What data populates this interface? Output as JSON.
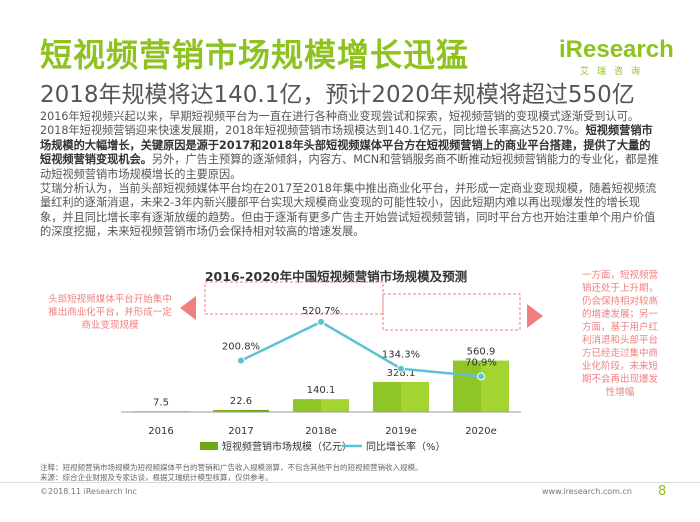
{
  "header": {
    "title": "短视频营销市场规模增长迅猛",
    "subtitle": "2018年规模将达140.1亿，预计2020年规模将超过550亿"
  },
  "logo": {
    "brand": "iResearch",
    "brand_cn": "艾瑞咨询"
  },
  "body": {
    "p1": "2016年短视频兴起以来，早期短视频平台为一直在进行各种商业变现尝试和探索，短视频营销的变现模式逐渐受到认可。2018年短视频营销迎来快速发展期，2018年短视频营销市场规模达到140.1亿元，同比增长率高达520.7%。",
    "p1_bold": "短视频营销市场规模的大幅增长，关键原因是源于2017和2018年头部短视频媒体平台方在短视频营销上的商业平台搭建，提供了大量的短视频营销变现机会。",
    "p1_tail": "另外，广告主预算的逐渐倾斜，内容方、MCN和营销服务商不断推动短视频营销能力的专业化，都是推动短视频营销市场规模增长的主要原因。",
    "p2": "艾瑞分析认为，当前头部短视频媒体平台均在2017至2018年集中推出商业化平台，并形成一定商业变现规模，随着短视频流量红利的逐渐消退，未来2-3年内新兴腰部平台实现大规模商业变现的可能性较小，因此短期内难以再出现爆发性的增长现象，并且同比增长率有逐渐放缓的趋势。但由于逐渐有更多广告主开始尝试短视频营销，同时平台方也开始注重单个用户价值的深度挖掘，未来短视频营销市场仍会保持相对较高的增速发展。"
  },
  "notes": {
    "left": "头部短视频媒体平台开始集中推出商业化平台，并形成一定商业变现规模",
    "right": "一方面，短视频营销还处于上升期，仍会保持相对较高的增速发展；另一方面，基于用户红利消退和头部平台方已经走过集中商业化阶段，未来短期不会再出现爆发性增幅"
  },
  "footnote": {
    "line1": "注释：短视频营销市场规模为短视频媒体平台的营销和广告收入规模测算，不包含其他平台的短视频营销收入规模。",
    "line2": "来源：综合企业财报及专家访谈，根据艾瑞统计模型核算，仅供参考。"
  },
  "footer": {
    "copyright": "©2018.11 iResearch Inc",
    "website": "www.iresearch.com.cn",
    "page": "8"
  },
  "colors": {
    "green": "#8dc21f",
    "bar_dark": "#6da816",
    "bar_light": "#a3d431",
    "line": "#5bc2d3",
    "note": "#f07f7f"
  },
  "chart_data": {
    "type": "bar",
    "title": "2016-2020年中国短视频营销市场规模及预测",
    "categories": [
      "2016",
      "2017",
      "2018e",
      "2019e",
      "2020e"
    ],
    "series": [
      {
        "name": "短视频营销市场规模（亿元）",
        "kind": "bar",
        "values": [
          7.5,
          22.6,
          140.1,
          328.1,
          560.9
        ],
        "labels": [
          "7.5",
          "22.6",
          "140.1",
          "328.1",
          "560.9"
        ]
      },
      {
        "name": "同比增长率（%）",
        "kind": "line",
        "values": [
          null,
          200.8,
          520.7,
          134.3,
          70.9
        ],
        "labels": [
          "",
          "200.8%",
          "520.7%",
          "134.3%",
          "70.9%"
        ]
      }
    ],
    "ylim_bar": [
      0,
      600
    ],
    "ylim_line": [
      0,
      800
    ],
    "legend_position": "bottom"
  }
}
